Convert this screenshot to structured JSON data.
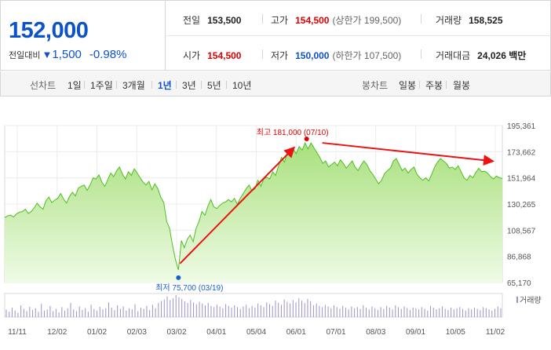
{
  "quote": {
    "price": "152,000",
    "change_label": "전일대비",
    "change_arrow": "▼",
    "change_value": "1,500",
    "change_pct": "-0.98%",
    "prev_close_label": "전일",
    "prev_close": "153,500",
    "high_label": "고가",
    "high": "154,500",
    "upper_limit": "(상한가 199,500)",
    "volume_label": "거래량",
    "volume": "158,525",
    "open_label": "시가",
    "open": "154,500",
    "low_label": "저가",
    "low": "150,000",
    "lower_limit": "(하한가 107,500)",
    "turnover_label": "거래대금",
    "turnover": "24,026 백만",
    "colors": {
      "up": "#e00000",
      "down": "#0d52c6"
    }
  },
  "period_bar": {
    "line_label": "선차트",
    "line_options": [
      "1일",
      "1주일",
      "3개월",
      "1년",
      "3년",
      "5년",
      "10년"
    ],
    "selected": "1년",
    "candle_label": "봉차트",
    "candle_options": [
      "일봉",
      "주봉",
      "월봉"
    ]
  },
  "chart_data": {
    "type": "area",
    "y_ticks": [
      "195,361",
      "173,662",
      "151,964",
      "130,265",
      "108,567",
      "86,868",
      "65,170"
    ],
    "ylim": [
      65170,
      195361
    ],
    "x_ticks": [
      "11/11",
      "12/02",
      "01/02",
      "02/03",
      "03/02",
      "04/01",
      "05/04",
      "06/01",
      "07/01",
      "08/03",
      "09/01",
      "10/05",
      "11/02"
    ],
    "volume_label": "거래량",
    "annotation_low": "최저 75,700 (03/19)",
    "annotation_high": "최고 181,000 (07/10)",
    "series": [
      {
        "values": [
          119000,
          120500,
          121000,
          119500,
          122000,
          123500,
          124000,
          126000,
          122500,
          124000,
          127000,
          131000,
          128000,
          126000,
          133000,
          136000,
          131500,
          133500,
          135000,
          139000,
          134500,
          131000,
          136500,
          140000,
          137000,
          143500,
          145000,
          146000,
          141500,
          146000,
          152000,
          151000,
          154500,
          148500,
          145000,
          150500,
          156000,
          153000,
          158000,
          161000,
          155000,
          151000,
          157000,
          154000,
          159500,
          156000,
          152000,
          148500,
          146000,
          149000,
          142000,
          147000,
          143000,
          136000,
          131500,
          116000,
          110000,
          96000,
          84000,
          75700,
          100000,
          94000,
          101000,
          104500,
          99000,
          110000,
          116000,
          124000,
          121000,
          128500,
          134000,
          128000,
          126500,
          129000,
          131000,
          132000,
          134000,
          132000,
          135000,
          130000,
          135000,
          139000,
          143000,
          146000,
          141000,
          143000,
          150000,
          145000,
          151000,
          152500,
          151000,
          157000,
          154000,
          162000,
          169000,
          165000,
          173000,
          170000,
          176000,
          172000,
          178000,
          175000,
          181000,
          176000,
          181000,
          177000,
          173000,
          169000,
          164000,
          166000,
          161000,
          163000,
          165000,
          162000,
          167000,
          164000,
          160000,
          163000,
          166000,
          161000,
          158000,
          162500,
          166000,
          163000,
          158000,
          155000,
          151000,
          147000,
          150000,
          155500,
          158000,
          160000,
          166000,
          168000,
          163000,
          158000,
          160000,
          156000,
          159000,
          161000,
          155000,
          152000,
          150000,
          152000,
          149500,
          155000,
          161000,
          165000,
          168000,
          166000,
          164000,
          160000,
          161000,
          159000,
          162000,
          157000,
          152000,
          150000,
          154000,
          152000,
          156500,
          160000,
          157000,
          157500,
          156000,
          153000,
          151000,
          153500,
          152000,
          151500
        ]
      }
    ],
    "volume_values": [
      25,
      18,
      32,
      22,
      15,
      40,
      28,
      20,
      35,
      24,
      30,
      18,
      45,
      22,
      26,
      38,
      20,
      28,
      16,
      34,
      22,
      30,
      48,
      26,
      20,
      36,
      24,
      30,
      18,
      42,
      28,
      22,
      35,
      26,
      30,
      50,
      32,
      24,
      40,
      28,
      36,
      22,
      30,
      26,
      44,
      20,
      32,
      28,
      38,
      24,
      42,
      30,
      48,
      55,
      60,
      70,
      58,
      64,
      75,
      68,
      62,
      54,
      48,
      58,
      50,
      44,
      52,
      46,
      40,
      48,
      38,
      34,
      42,
      36,
      30,
      44,
      38,
      32,
      40,
      34,
      28,
      36,
      42,
      30,
      38,
      32,
      46,
      40,
      34,
      50,
      44,
      38,
      56,
      48,
      42,
      60,
      52,
      46,
      58,
      50,
      64,
      56,
      48,
      62,
      54,
      40,
      46,
      38,
      34,
      42,
      36,
      30,
      40,
      34,
      28,
      38,
      32,
      26,
      36,
      30,
      34,
      28,
      40,
      32,
      26,
      36,
      30,
      24,
      34,
      28,
      38,
      32,
      26,
      40,
      34,
      28,
      36,
      30,
      24,
      32,
      30,
      26,
      34,
      28,
      22,
      38,
      32,
      26,
      30,
      36,
      28,
      24,
      32,
      26,
      30,
      34,
      28,
      22,
      30,
      26,
      32,
      28,
      24,
      34,
      30,
      26,
      22,
      28,
      36,
      30
    ]
  }
}
